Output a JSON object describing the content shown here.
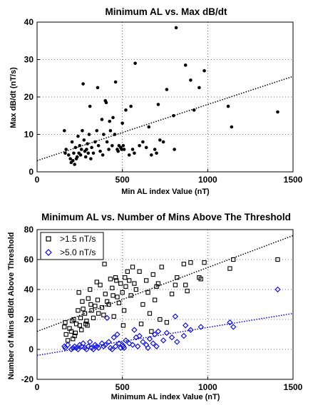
{
  "chart_data": [
    {
      "type": "scatter",
      "title": "Minimum AL vs. Max dB/dt",
      "xlabel": "Min AL index Value (nT)",
      "ylabel": "Max dB/dt (nT/s)",
      "xlim": [
        0,
        1500
      ],
      "ylim": [
        0,
        40
      ],
      "xticks": [
        0,
        500,
        1000,
        1500
      ],
      "yticks": [
        0,
        10,
        20,
        30,
        40
      ],
      "grid": true,
      "series": [
        {
          "marker": "filled-circle",
          "color": "#000000",
          "points": [
            [
              160,
              11
            ],
            [
              165,
              5
            ],
            [
              170,
              6
            ],
            [
              185,
              4.5
            ],
            [
              195,
              3.5
            ],
            [
              200,
              2.5
            ],
            [
              205,
              8
            ],
            [
              210,
              3
            ],
            [
              215,
              5
            ],
            [
              220,
              2
            ],
            [
              225,
              6.5
            ],
            [
              230,
              3.5
            ],
            [
              235,
              4
            ],
            [
              240,
              9.5
            ],
            [
              245,
              5
            ],
            [
              250,
              7
            ],
            [
              255,
              4.5
            ],
            [
              260,
              6
            ],
            [
              265,
              11
            ],
            [
              270,
              23.5
            ],
            [
              275,
              8.5
            ],
            [
              280,
              5.5
            ],
            [
              285,
              4
            ],
            [
              290,
              6
            ],
            [
              295,
              7.5
            ],
            [
              300,
              5
            ],
            [
              305,
              10
            ],
            [
              310,
              17.5
            ],
            [
              315,
              3.5
            ],
            [
              320,
              6.5
            ],
            [
              330,
              5
            ],
            [
              340,
              8
            ],
            [
              350,
              11
            ],
            [
              355,
              22.5
            ],
            [
              360,
              7
            ],
            [
              370,
              5.5
            ],
            [
              380,
              14
            ],
            [
              385,
              4.5
            ],
            [
              390,
              10
            ],
            [
              400,
              19
            ],
            [
              405,
              18.5
            ],
            [
              410,
              8
            ],
            [
              420,
              6
            ],
            [
              425,
              13.5
            ],
            [
              430,
              11
            ],
            [
              440,
              7
            ],
            [
              445,
              14.5
            ],
            [
              455,
              10
            ],
            [
              460,
              24
            ],
            [
              470,
              6
            ],
            [
              475,
              5.5
            ],
            [
              480,
              7
            ],
            [
              490,
              6.5
            ],
            [
              495,
              6
            ],
            [
              500,
              13
            ],
            [
              505,
              7
            ],
            [
              510,
              6
            ],
            [
              520,
              16.5
            ],
            [
              540,
              4.5
            ],
            [
              550,
              17.5
            ],
            [
              560,
              6
            ],
            [
              570,
              5
            ],
            [
              575,
              29
            ],
            [
              600,
              7
            ],
            [
              620,
              8
            ],
            [
              640,
              6.5
            ],
            [
              655,
              12
            ],
            [
              670,
              4.5
            ],
            [
              690,
              6
            ],
            [
              700,
              5
            ],
            [
              710,
              18
            ],
            [
              720,
              8.5
            ],
            [
              740,
              8
            ],
            [
              760,
              22
            ],
            [
              800,
              15
            ],
            [
              805,
              6
            ],
            [
              815,
              38.5
            ],
            [
              870,
              28.5
            ],
            [
              900,
              24.5
            ],
            [
              920,
              16.5
            ],
            [
              950,
              22.5
            ],
            [
              980,
              27
            ],
            [
              1120,
              17.5
            ],
            [
              1140,
              12
            ],
            [
              1410,
              16
            ]
          ]
        }
      ],
      "trendlines": [
        {
          "color": "#000000",
          "style": "dotted",
          "x": [
            0,
            1500
          ],
          "y": [
            3,
            25.5
          ]
        }
      ]
    },
    {
      "type": "scatter",
      "title": "Minimum AL vs. Number of Mins Above The Threshold",
      "xlabel": "Minimum AL index Value (nT)",
      "ylabel": "Number of Mins dB/dt Above Threshold",
      "xlim": [
        0,
        1500
      ],
      "ylim": [
        -20,
        80
      ],
      "xticks": [
        0,
        500,
        1000,
        1500
      ],
      "yticks": [
        -20,
        0,
        20,
        40,
        60,
        80
      ],
      "grid": true,
      "legend": "top-left",
      "series": [
        {
          "name": ">1.5 nT/s",
          "marker": "open-square",
          "color": "#000000",
          "points": [
            [
              160,
              15
            ],
            [
              165,
              18
            ],
            [
              170,
              10
            ],
            [
              180,
              6
            ],
            [
              190,
              14
            ],
            [
              200,
              12
            ],
            [
              205,
              19
            ],
            [
              210,
              7
            ],
            [
              215,
              20
            ],
            [
              220,
              9
            ],
            [
              225,
              11
            ],
            [
              230,
              17
            ],
            [
              240,
              26
            ],
            [
              245,
              38
            ],
            [
              250,
              16
            ],
            [
              255,
              21
            ],
            [
              260,
              13
            ],
            [
              265,
              32
            ],
            [
              270,
              27
            ],
            [
              280,
              24
            ],
            [
              285,
              17
            ],
            [
              290,
              19
            ],
            [
              295,
              16
            ],
            [
              300,
              34
            ],
            [
              310,
              40
            ],
            [
              315,
              30
            ],
            [
              320,
              26
            ],
            [
              330,
              21
            ],
            [
              340,
              29
            ],
            [
              350,
              45
            ],
            [
              355,
              33
            ],
            [
              360,
              24
            ],
            [
              370,
              43
            ],
            [
              380,
              28
            ],
            [
              390,
              23
            ],
            [
              395,
              57
            ],
            [
              400,
              37
            ],
            [
              410,
              32
            ],
            [
              420,
              30
            ],
            [
              430,
              47
            ],
            [
              440,
              41
            ],
            [
              445,
              36
            ],
            [
              450,
              22
            ],
            [
              460,
              48
            ],
            [
              465,
              46
            ],
            [
              470,
              35
            ],
            [
              480,
              31
            ],
            [
              490,
              44
            ],
            [
              500,
              38
            ],
            [
              505,
              16
            ],
            [
              510,
              26
            ],
            [
              515,
              48
            ],
            [
              520,
              42
            ],
            [
              530,
              52
            ],
            [
              540,
              46
            ],
            [
              550,
              36
            ],
            [
              560,
              55
            ],
            [
              570,
              44
            ],
            [
              580,
              40
            ],
            [
              600,
              52
            ],
            [
              610,
              17
            ],
            [
              620,
              30
            ],
            [
              640,
              46
            ],
            [
              650,
              38
            ],
            [
              660,
              24
            ],
            [
              670,
              12
            ],
            [
              680,
              50
            ],
            [
              690,
              33
            ],
            [
              700,
              42
            ],
            [
              710,
              44
            ],
            [
              720,
              20
            ],
            [
              730,
              55
            ],
            [
              760,
              18
            ],
            [
              790,
              37
            ],
            [
              810,
              43
            ],
            [
              820,
              48
            ],
            [
              860,
              57
            ],
            [
              870,
              43
            ],
            [
              880,
              39
            ],
            [
              900,
              58
            ],
            [
              950,
              48
            ],
            [
              960,
              47
            ],
            [
              980,
              58
            ],
            [
              1130,
              54
            ],
            [
              1150,
              60
            ],
            [
              1410,
              60
            ]
          ]
        },
        {
          "name": ">5.0 nT/s",
          "marker": "open-diamond",
          "color": "#0000ff",
          "points": [
            [
              160,
              2
            ],
            [
              165,
              1
            ],
            [
              180,
              3
            ],
            [
              200,
              0
            ],
            [
              210,
              1
            ],
            [
              220,
              2
            ],
            [
              230,
              1
            ],
            [
              240,
              0
            ],
            [
              250,
              3
            ],
            [
              260,
              2
            ],
            [
              270,
              4
            ],
            [
              280,
              1
            ],
            [
              290,
              0
            ],
            [
              300,
              2
            ],
            [
              310,
              5
            ],
            [
              320,
              1
            ],
            [
              330,
              0
            ],
            [
              340,
              3
            ],
            [
              350,
              2
            ],
            [
              360,
              1
            ],
            [
              380,
              4
            ],
            [
              390,
              2
            ],
            [
              400,
              3
            ],
            [
              410,
              21
            ],
            [
              420,
              5
            ],
            [
              430,
              1
            ],
            [
              440,
              0
            ],
            [
              450,
              8
            ],
            [
              460,
              2
            ],
            [
              470,
              10
            ],
            [
              480,
              4
            ],
            [
              490,
              1
            ],
            [
              500,
              3
            ],
            [
              505,
              2
            ],
            [
              510,
              1
            ],
            [
              520,
              6
            ],
            [
              540,
              4
            ],
            [
              560,
              3
            ],
            [
              570,
              13
            ],
            [
              580,
              8
            ],
            [
              590,
              2
            ],
            [
              600,
              9
            ],
            [
              620,
              5
            ],
            [
              640,
              3
            ],
            [
              650,
              1
            ],
            [
              660,
              7
            ],
            [
              680,
              4
            ],
            [
              690,
              10
            ],
            [
              700,
              2
            ],
            [
              710,
              12
            ],
            [
              740,
              6
            ],
            [
              760,
              11
            ],
            [
              790,
              8
            ],
            [
              810,
              22
            ],
            [
              820,
              5
            ],
            [
              860,
              9
            ],
            [
              870,
              16
            ],
            [
              900,
              13
            ],
            [
              960,
              15
            ],
            [
              1130,
              18
            ],
            [
              1150,
              15
            ],
            [
              1410,
              40
            ]
          ]
        }
      ],
      "trendlines": [
        {
          "color": "#000000",
          "style": "dotted",
          "x": [
            0,
            1500
          ],
          "y": [
            12,
            76
          ]
        },
        {
          "color": "#0000ff",
          "style": "dotted",
          "x": [
            0,
            1500
          ],
          "y": [
            -4,
            24
          ]
        }
      ]
    }
  ]
}
